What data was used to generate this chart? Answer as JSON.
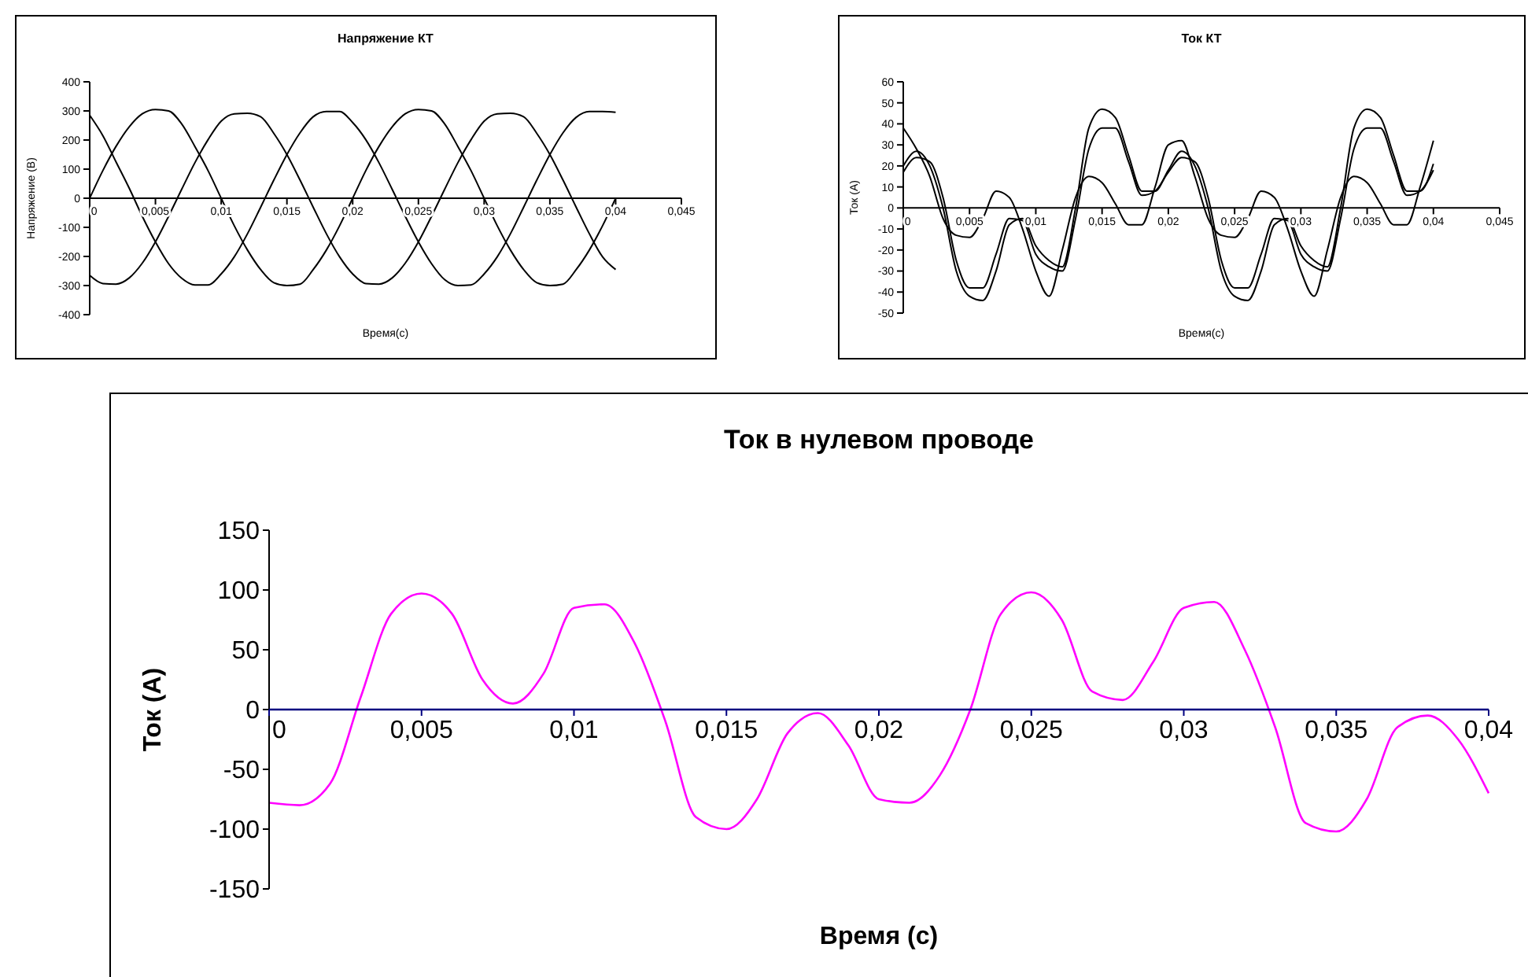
{
  "chart_data": [
    {
      "type": "line",
      "title": "Напряжение КТ",
      "xlabel": "Время(с)",
      "ylabel": "Напряжение (В)",
      "grid": false,
      "marker": "none",
      "line_style": "solid",
      "x": [
        0,
        0.001,
        0.002,
        0.003,
        0.004,
        0.005,
        0.006,
        0.007,
        0.008,
        0.009,
        0.01,
        0.011,
        0.012,
        0.013,
        0.014,
        0.015,
        0.016,
        0.017,
        0.018,
        0.019,
        0.02,
        0.021,
        0.022,
        0.023,
        0.024,
        0.025,
        0.026,
        0.027,
        0.028,
        0.029,
        0.03,
        0.031,
        0.032,
        0.033,
        0.034,
        0.035,
        0.036,
        0.037,
        0.038,
        0.039,
        0.04
      ],
      "xlim": [
        0,
        0.045
      ],
      "xticks": [
        {
          "value": 0,
          "label": "0"
        },
        {
          "value": 0.005,
          "label": "0,005"
        },
        {
          "value": 0.01,
          "label": "0,01"
        },
        {
          "value": 0.015,
          "label": "0,015"
        },
        {
          "value": 0.02,
          "label": "0,02"
        },
        {
          "value": 0.025,
          "label": "0,025"
        },
        {
          "value": 0.03,
          "label": "0,03"
        },
        {
          "value": 0.035,
          "label": "0,035"
        },
        {
          "value": 0.04,
          "label": "0,04"
        },
        {
          "value": 0.045,
          "label": "0,045"
        }
      ],
      "ylim": [
        -400,
        400
      ],
      "yticks": [
        -400,
        -300,
        -200,
        -100,
        0,
        100,
        200,
        300,
        400
      ],
      "series": [
        {
          "color": "#000000",
          "values": [
            0,
            95,
            178,
            245,
            290,
            305,
            300,
            255,
            178,
            95,
            0,
            -95,
            -178,
            -245,
            -290,
            -300,
            -295,
            -245,
            -178,
            -95,
            0,
            95,
            178,
            245,
            290,
            305,
            300,
            255,
            178,
            95,
            0,
            -95,
            -178,
            -245,
            -290,
            -300,
            -295,
            -245,
            -178,
            -95,
            0
          ]
        },
        {
          "color": "#000000",
          "values": [
            285,
            215,
            125,
            35,
            -62,
            -150,
            -225,
            -275,
            -298,
            -298,
            -260,
            -201,
            -122,
            -31,
            62,
            150,
            225,
            280,
            298,
            298,
            260,
            201,
            122,
            31,
            -62,
            -150,
            -225,
            -280,
            -300,
            -298,
            -260,
            -201,
            -122,
            -31,
            62,
            150,
            225,
            278,
            298,
            298,
            295
          ]
        },
        {
          "color": "#000000",
          "values": [
            -265,
            -293,
            -295,
            -274,
            -223,
            -150,
            -62,
            31,
            122,
            201,
            265,
            290,
            292,
            280,
            223,
            150,
            62,
            -31,
            -122,
            -201,
            -260,
            -293,
            -295,
            -274,
            -223,
            -150,
            -62,
            31,
            122,
            201,
            265,
            290,
            292,
            280,
            223,
            150,
            62,
            -31,
            -122,
            -201,
            -245
          ]
        }
      ]
    },
    {
      "type": "line",
      "title": "Ток КТ",
      "xlabel": "Время(с)",
      "ylabel": "Ток (А)",
      "grid": false,
      "marker": "none",
      "line_style": "solid",
      "x": [
        0,
        0.001,
        0.002,
        0.003,
        0.004,
        0.005,
        0.006,
        0.007,
        0.008,
        0.009,
        0.01,
        0.011,
        0.012,
        0.013,
        0.014,
        0.015,
        0.016,
        0.017,
        0.018,
        0.019,
        0.02,
        0.021,
        0.022,
        0.023,
        0.024,
        0.025,
        0.026,
        0.027,
        0.028,
        0.029,
        0.03,
        0.031,
        0.032,
        0.033,
        0.034,
        0.035,
        0.036,
        0.037,
        0.038,
        0.039,
        0.04
      ],
      "xlim": [
        0,
        0.045
      ],
      "xticks": [
        {
          "value": 0,
          "label": "0"
        },
        {
          "value": 0.005,
          "label": "0,005"
        },
        {
          "value": 0.01,
          "label": "0,01"
        },
        {
          "value": 0.015,
          "label": "0,015"
        },
        {
          "value": 0.02,
          "label": "0,02"
        },
        {
          "value": 0.025,
          "label": "0,025"
        },
        {
          "value": 0.03,
          "label": "0,03"
        },
        {
          "value": 0.035,
          "label": "0,035"
        },
        {
          "value": 0.04,
          "label": "0,04"
        },
        {
          "value": 0.045,
          "label": "0,045"
        }
      ],
      "ylim": [
        -50,
        60
      ],
      "yticks": [
        -50,
        -40,
        -30,
        -20,
        -10,
        0,
        10,
        20,
        30,
        40,
        50,
        60
      ],
      "series": [
        {
          "color": "#000000",
          "values": [
            20,
            27,
            20,
            0,
            -30,
            -42,
            -44,
            -30,
            -8,
            -5,
            -18,
            -25,
            -28,
            0,
            38,
            47,
            43,
            25,
            8,
            8,
            18,
            27,
            20,
            0,
            -30,
            -42,
            -44,
            -30,
            -8,
            -5,
            -18,
            -25,
            -28,
            0,
            38,
            47,
            43,
            25,
            8,
            8,
            21
          ]
        },
        {
          "color": "#000000",
          "values": [
            17,
            24,
            22,
            5,
            -25,
            -38,
            -38,
            -22,
            -5,
            -6,
            -22,
            -28,
            -30,
            -5,
            28,
            38,
            38,
            22,
            6,
            8,
            17,
            24,
            22,
            5,
            -25,
            -38,
            -38,
            -22,
            -5,
            -6,
            -22,
            -28,
            -30,
            -5,
            28,
            38,
            38,
            22,
            6,
            8,
            18
          ]
        },
        {
          "color": "#000000",
          "values": [
            38,
            28,
            15,
            -5,
            -13,
            -14,
            -5,
            8,
            5,
            -10,
            -30,
            -42,
            -20,
            5,
            15,
            12,
            2,
            -8,
            -8,
            10,
            30,
            32,
            15,
            -5,
            -13,
            -14,
            -5,
            8,
            5,
            -10,
            -30,
            -42,
            -20,
            5,
            15,
            12,
            2,
            -8,
            -8,
            10,
            32
          ]
        }
      ]
    },
    {
      "type": "line",
      "title": "Ток в нулевом проводе",
      "xlabel": "Время  (с)",
      "ylabel": "Ток (А)",
      "grid": false,
      "marker": "none",
      "line_style": "solid",
      "x": [
        0,
        0.001,
        0.002,
        0.003,
        0.004,
        0.005,
        0.006,
        0.007,
        0.008,
        0.009,
        0.01,
        0.011,
        0.012,
        0.013,
        0.014,
        0.015,
        0.016,
        0.017,
        0.018,
        0.019,
        0.02,
        0.021,
        0.022,
        0.023,
        0.024,
        0.025,
        0.026,
        0.027,
        0.028,
        0.029,
        0.03,
        0.031,
        0.032,
        0.033,
        0.034,
        0.035,
        0.036,
        0.037,
        0.038,
        0.039,
        0.04
      ],
      "xlim": [
        0,
        0.04
      ],
      "xticks": [
        {
          "value": 0,
          "label": "0"
        },
        {
          "value": 0.005,
          "label": "0,005"
        },
        {
          "value": 0.01,
          "label": "0,01"
        },
        {
          "value": 0.015,
          "label": "0,015"
        },
        {
          "value": 0.02,
          "label": "0,02"
        },
        {
          "value": 0.025,
          "label": "0,025"
        },
        {
          "value": 0.03,
          "label": "0,03"
        },
        {
          "value": 0.035,
          "label": "0,035"
        },
        {
          "value": 0.04,
          "label": "0,04"
        }
      ],
      "ylim": [
        -150,
        150
      ],
      "yticks": [
        -150,
        -100,
        -50,
        0,
        50,
        100,
        150
      ],
      "series": [
        {
          "color": "#ff00ff",
          "values": [
            -78,
            -80,
            -62,
            10,
            80,
            97,
            80,
            25,
            5,
            30,
            85,
            88,
            55,
            -10,
            -90,
            -100,
            -75,
            -20,
            -3,
            -30,
            -75,
            -78,
            -55,
            0,
            80,
            98,
            75,
            15,
            8,
            40,
            85,
            90,
            50,
            -15,
            -95,
            -102,
            -75,
            -15,
            -5,
            -25,
            -70
          ]
        }
      ]
    }
  ]
}
